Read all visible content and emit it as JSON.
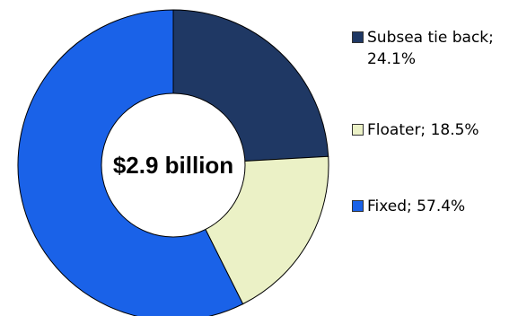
{
  "chart_data": {
    "type": "pie",
    "center_label": "$2.9 billion",
    "legend_position": "right",
    "slices": [
      {
        "label": "Subsea tie back",
        "value": 24.1,
        "legend_text": "Subsea tie back; 24.1%",
        "color": "#1f3864"
      },
      {
        "label": "Floater",
        "value": 18.5,
        "legend_text": "Floater; 18.5%",
        "color": "#ebf1c6"
      },
      {
        "label": "Fixed",
        "value": 57.4,
        "legend_text": "Fixed; 57.4%",
        "color": "#1a62e8"
      }
    ]
  }
}
